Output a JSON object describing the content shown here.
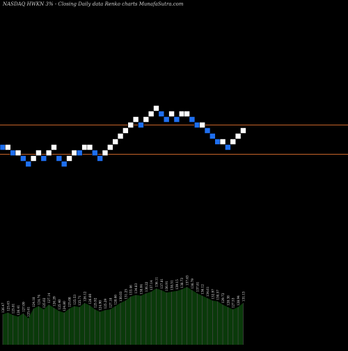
{
  "chart_data": {
    "type": "renko",
    "title": "NASDAQ HWKN  3% -  Closing Daily data  Renko  charts MunafaSutra.com",
    "colors": {
      "background": "#000000",
      "up_brick": "#ffffff",
      "down_brick": "#1e6ff0",
      "reference_line": "#c8642a",
      "volume_fill": "#0a3a0a",
      "volume_stroke": "#4a4a4a",
      "label": "#e8e8e8"
    },
    "bricks": [
      {
        "dir": "down",
        "level": 2
      },
      {
        "dir": "up",
        "level": 2
      },
      {
        "dir": "down",
        "level": 1
      },
      {
        "dir": "up",
        "level": 1
      },
      {
        "dir": "down",
        "level": 0
      },
      {
        "dir": "down",
        "level": -1
      },
      {
        "dir": "up",
        "level": 0
      },
      {
        "dir": "up",
        "level": 1
      },
      {
        "dir": "down",
        "level": 0
      },
      {
        "dir": "up",
        "level": 1
      },
      {
        "dir": "up",
        "level": 2
      },
      {
        "dir": "down",
        "level": 0
      },
      {
        "dir": "down",
        "level": -1
      },
      {
        "dir": "up",
        "level": 0
      },
      {
        "dir": "up",
        "level": 1
      },
      {
        "dir": "down",
        "level": 1
      },
      {
        "dir": "up",
        "level": 2
      },
      {
        "dir": "up",
        "level": 2
      },
      {
        "dir": "down",
        "level": 1
      },
      {
        "dir": "down",
        "level": 0
      },
      {
        "dir": "up",
        "level": 1
      },
      {
        "dir": "up",
        "level": 2
      },
      {
        "dir": "up",
        "level": 3
      },
      {
        "dir": "up",
        "level": 4
      },
      {
        "dir": "up",
        "level": 5
      },
      {
        "dir": "up",
        "level": 6
      },
      {
        "dir": "up",
        "level": 7
      },
      {
        "dir": "down",
        "level": 6
      },
      {
        "dir": "up",
        "level": 7
      },
      {
        "dir": "up",
        "level": 8
      },
      {
        "dir": "up",
        "level": 9
      },
      {
        "dir": "down",
        "level": 8
      },
      {
        "dir": "down",
        "level": 7
      },
      {
        "dir": "up",
        "level": 8
      },
      {
        "dir": "down",
        "level": 7
      },
      {
        "dir": "up",
        "level": 8
      },
      {
        "dir": "up",
        "level": 8
      },
      {
        "dir": "down",
        "level": 7
      },
      {
        "dir": "down",
        "level": 6
      },
      {
        "dir": "up",
        "level": 6
      },
      {
        "dir": "down",
        "level": 5
      },
      {
        "dir": "down",
        "level": 4
      },
      {
        "dir": "down",
        "level": 3
      },
      {
        "dir": "up",
        "level": 3
      },
      {
        "dir": "down",
        "level": 2
      },
      {
        "dir": "up",
        "level": 3
      },
      {
        "dir": "up",
        "level": 4
      },
      {
        "dir": "up",
        "level": 5
      }
    ],
    "reference_lines": [
      "upper",
      "lower"
    ],
    "volume": [
      38,
      40,
      37,
      35,
      39,
      33,
      45,
      48,
      44,
      50,
      46,
      42,
      40,
      45,
      48,
      47,
      52,
      49,
      44,
      41,
      43,
      44,
      48,
      52,
      55,
      60,
      62,
      61,
      64,
      66,
      70,
      68,
      65,
      66,
      67,
      69,
      72,
      68,
      64,
      61,
      58,
      55,
      54,
      50,
      47,
      44,
      47,
      52
    ],
    "volume_labels": [
      "126.47",
      "125.63",
      "125.81",
      "126.41",
      "127.09",
      "125.61",
      "124.18",
      "124.74",
      "125.02",
      "127.14",
      "126.29",
      "125.40",
      "124.80",
      "125.08",
      "125.53",
      "125.71",
      "126.12",
      "126.60",
      "125.92",
      "124.90",
      "125.29",
      "127.18",
      "128.66",
      "130.03",
      "131.25",
      "133.46",
      "134.83",
      "138.04",
      "136.22",
      "137.14",
      "136.11",
      "137.81",
      "136.91",
      "138.51",
      "139.15",
      "138.73",
      "137.63",
      "136.79",
      "137.81",
      "136.12",
      "134.61",
      "132.97",
      "130.57",
      "129.72",
      "128.38",
      "127.53",
      "128.94",
      "131.13"
    ]
  }
}
